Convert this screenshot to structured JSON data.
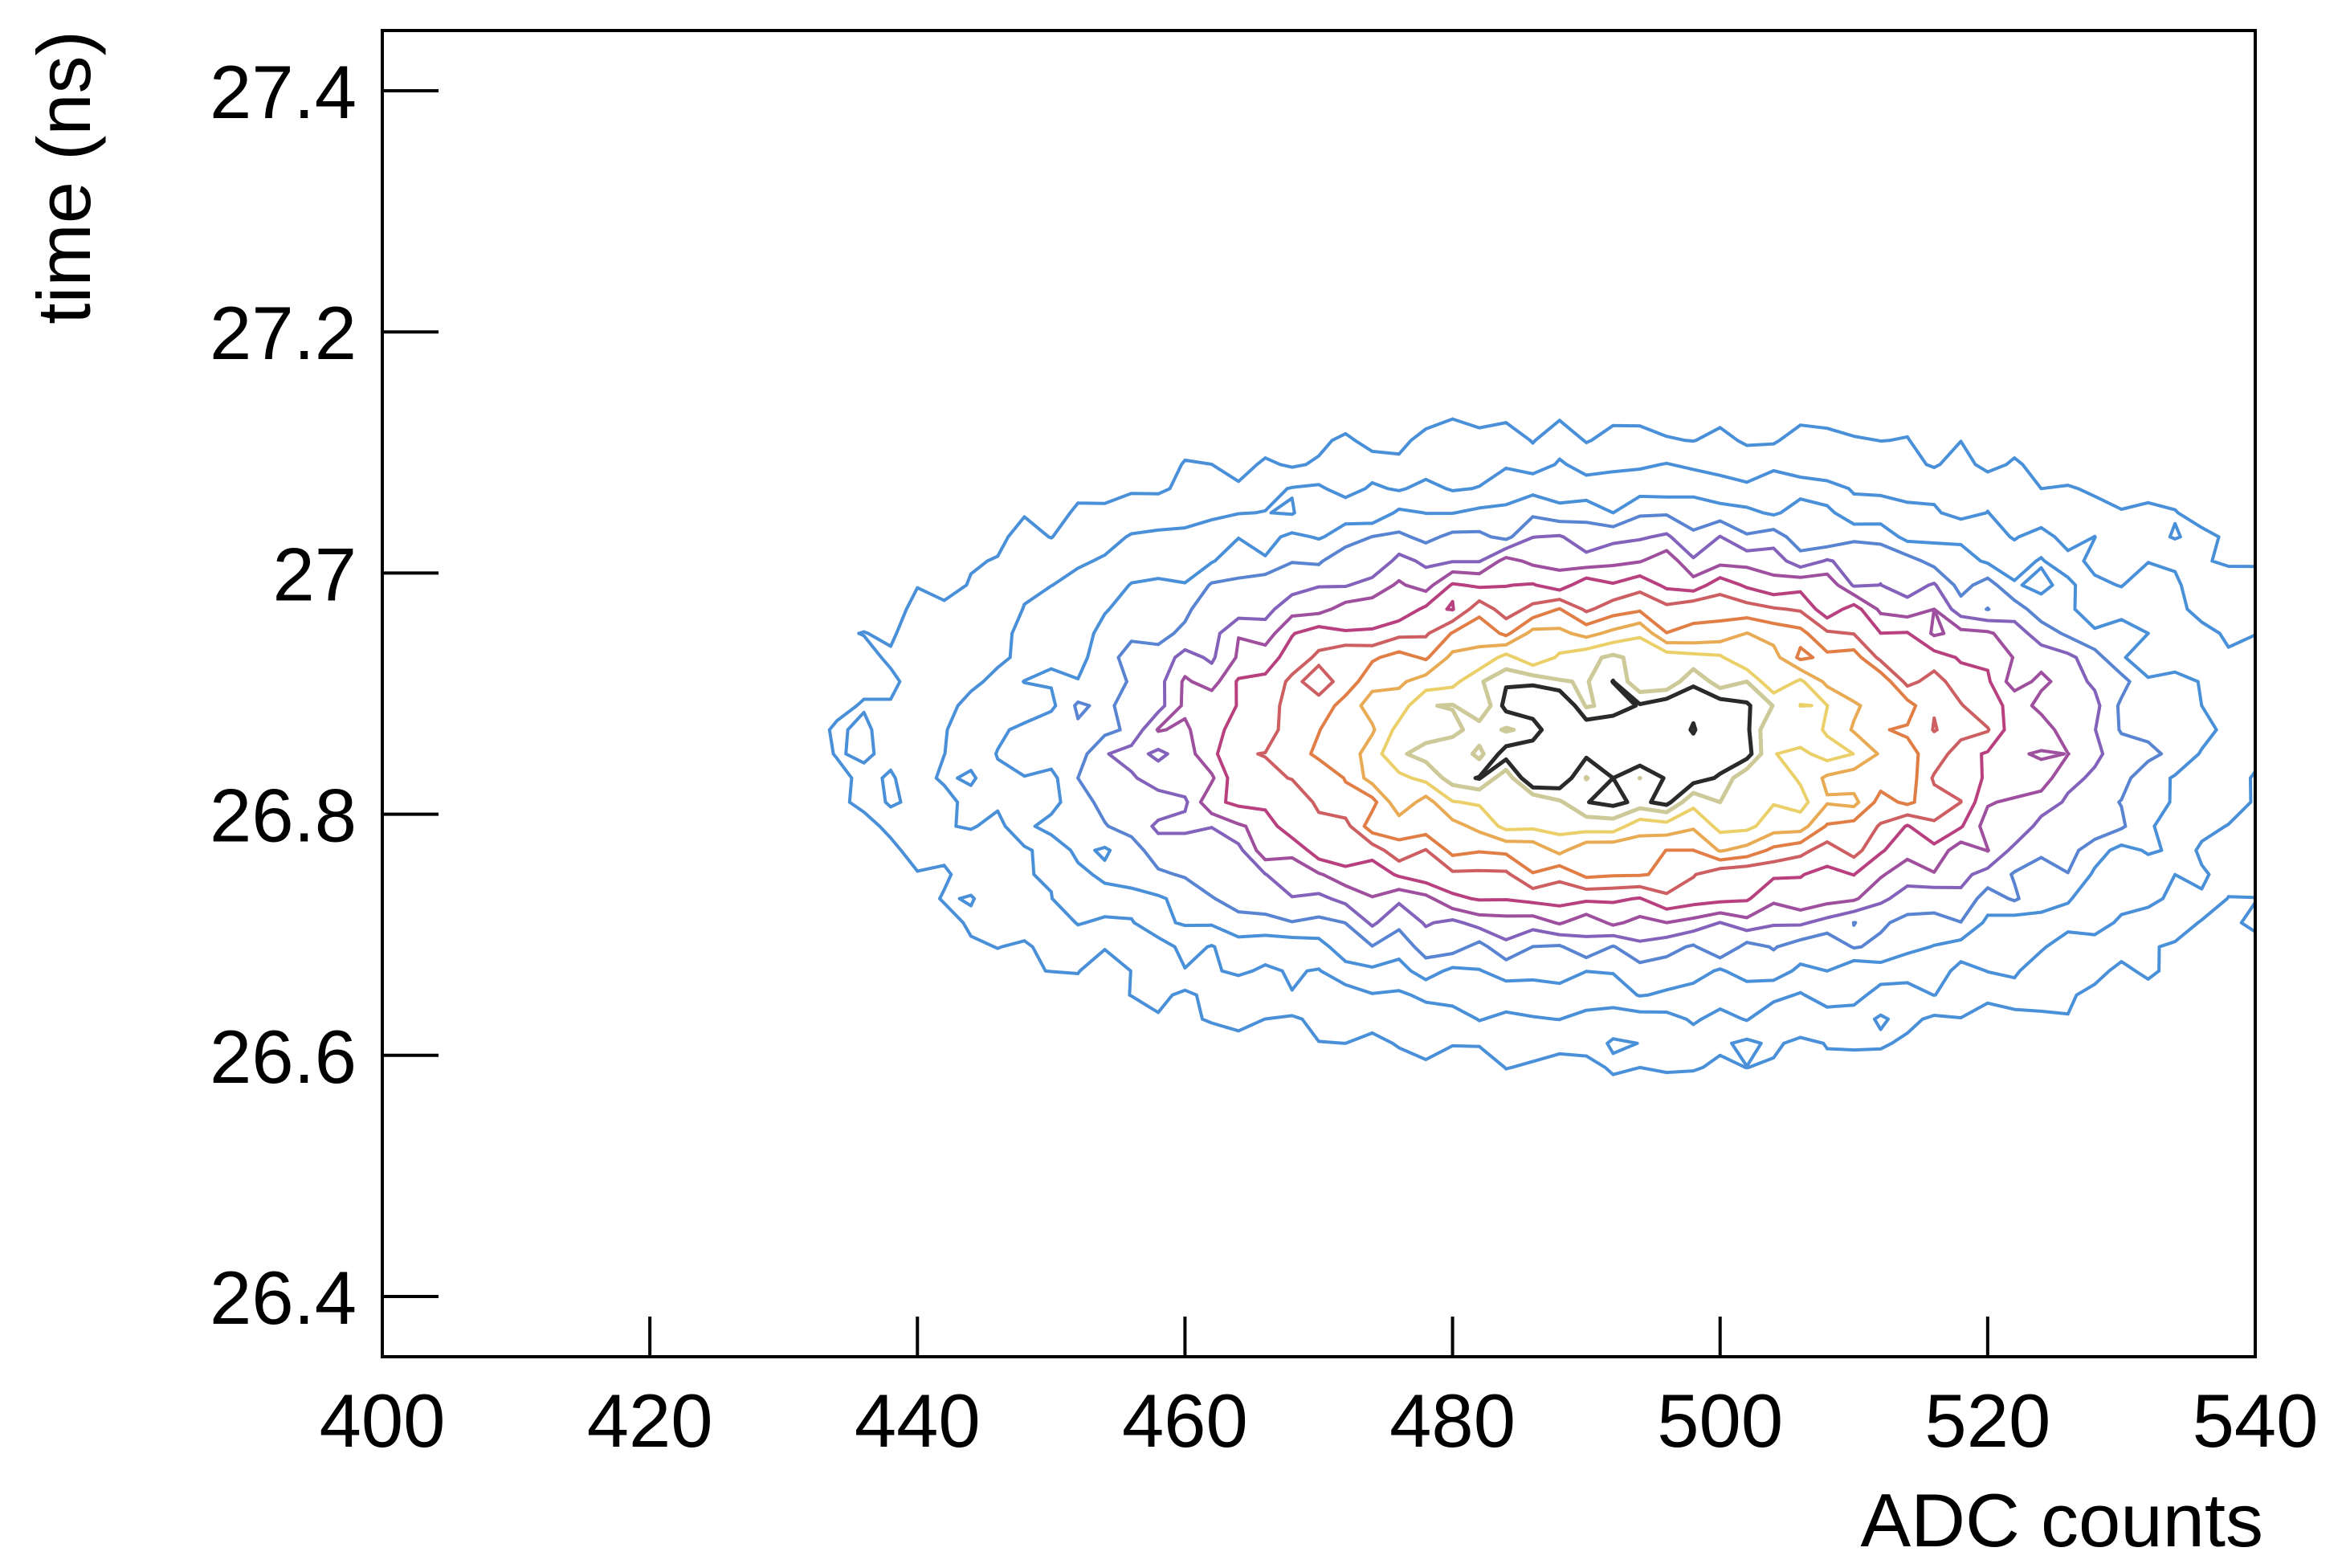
{
  "chart_data": {
    "type": "contour",
    "title": "",
    "xlabel": "ADC counts",
    "ylabel": "time (ns)",
    "xlim": [
      400,
      540
    ],
    "ylim": [
      26.35,
      27.45
    ],
    "xticks": [
      400,
      420,
      440,
      460,
      480,
      500,
      520,
      540
    ],
    "yticks": [
      26.4,
      26.6,
      26.8,
      27.0,
      27.2,
      27.4
    ],
    "xtick_labels": [
      "400",
      "420",
      "440",
      "460",
      "480",
      "500",
      "520",
      "540"
    ],
    "ytick_labels": [
      "26.4",
      "26.6",
      "26.8",
      "27",
      "27.2",
      "27.4"
    ],
    "distribution": {
      "description_shape": "2D Gaussian-like density",
      "peak_x": 492,
      "peak_y": 26.86,
      "sigma_x": 24,
      "sigma_y": 0.11,
      "x_extent": [
        400,
        540
      ],
      "y_extent": [
        26.57,
        27.4
      ]
    },
    "contour_levels": [
      0.06,
      0.12,
      0.19,
      0.26,
      0.33,
      0.4,
      0.48,
      0.56,
      0.64,
      0.72,
      0.8,
      0.88,
      0.94
    ],
    "colors": {
      "low": "#4a90d9",
      "mid_low": "#8a5bb5",
      "mid": "#b8407f",
      "mid_high": "#e07a45",
      "high": "#f0d060",
      "peak": "#2a2a2a"
    }
  }
}
